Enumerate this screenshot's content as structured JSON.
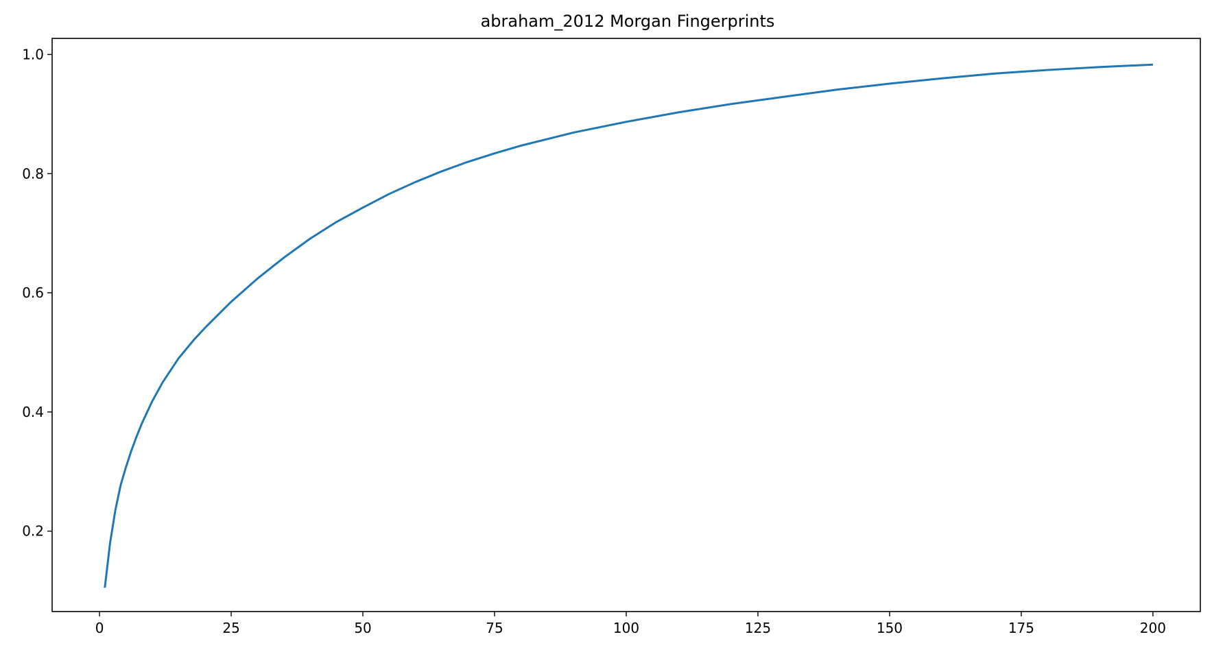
{
  "chart_data": {
    "type": "line",
    "title": "abraham_2012 Morgan Fingerprints",
    "xlabel": "",
    "ylabel": "",
    "xlim": [
      -9,
      209
    ],
    "ylim": [
      0.065,
      1.027
    ],
    "grid": false,
    "legend": "none",
    "x_ticks": [
      0,
      25,
      50,
      75,
      100,
      125,
      150,
      175,
      200
    ],
    "y_ticks": [
      0.2,
      0.4,
      0.6,
      0.8,
      1.0
    ],
    "y_tick_labels": [
      "0.2",
      "0.4",
      "0.6",
      "0.8",
      "1.0"
    ],
    "series": [
      {
        "color": "#1f77b4",
        "x": [
          1,
          2,
          3,
          4,
          5,
          6,
          7,
          8,
          10,
          12,
          15,
          18,
          20,
          25,
          30,
          35,
          40,
          45,
          50,
          55,
          60,
          65,
          70,
          75,
          80,
          90,
          100,
          110,
          120,
          125,
          130,
          140,
          150,
          160,
          170,
          175,
          180,
          190,
          200
        ],
        "y": [
          0.105,
          0.18,
          0.235,
          0.277,
          0.307,
          0.334,
          0.358,
          0.38,
          0.418,
          0.45,
          0.49,
          0.522,
          0.541,
          0.585,
          0.624,
          0.659,
          0.691,
          0.719,
          0.743,
          0.766,
          0.786,
          0.804,
          0.82,
          0.834,
          0.847,
          0.869,
          0.887,
          0.903,
          0.917,
          0.923,
          0.929,
          0.941,
          0.951,
          0.96,
          0.968,
          0.971,
          0.974,
          0.979,
          0.983
        ]
      }
    ]
  }
}
